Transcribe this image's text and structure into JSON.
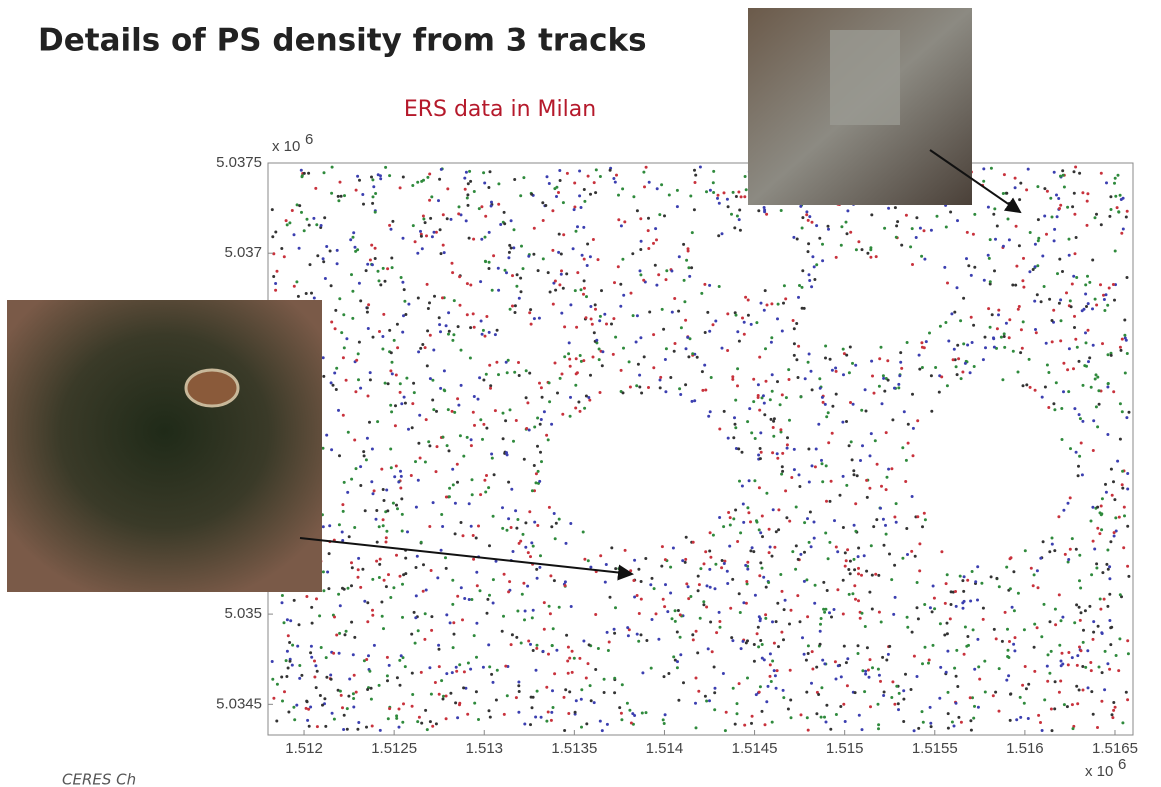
{
  "chart_data": {
    "type": "scatter",
    "title": "Details of PS density from 3 tracks",
    "subtitle": "ERS data in Milan",
    "xlim": [
      1.5118,
      1.5166
    ],
    "ylim": [
      5.03433,
      5.0375
    ],
    "xticks": [
      1.512,
      1.5125,
      1.513,
      1.5135,
      1.514,
      1.5145,
      1.515,
      1.5155,
      1.516,
      1.5165
    ],
    "yticks": [
      5.0345,
      5.035,
      5.037,
      5.0375
    ],
    "x_multiplier": {
      "base": "x 10",
      "exp": "6"
    },
    "y_multiplier": {
      "base": "x 10",
      "exp": "6"
    },
    "point_colors": [
      "#c8323c",
      "#2f8a3c",
      "#3b3fb0",
      "#333333"
    ],
    "footer": "CERES Ch"
  }
}
